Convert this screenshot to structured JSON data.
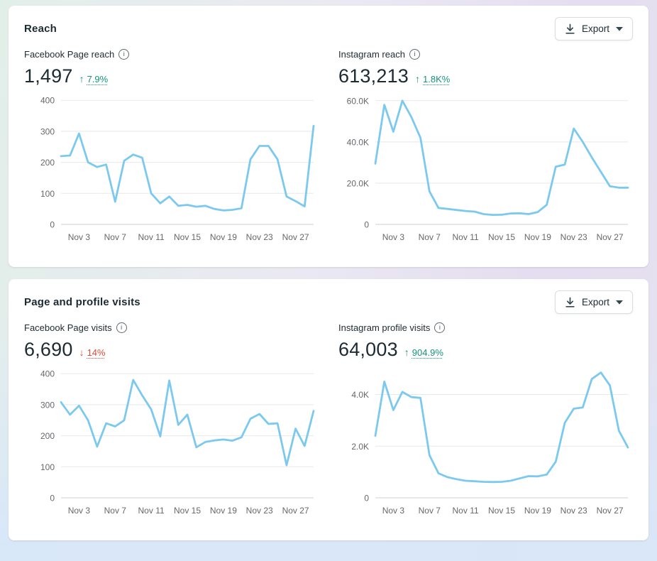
{
  "colors": {
    "positive": "#13947c",
    "negative": "#e0493a",
    "line": "#7cc9f0",
    "grid": "#e7e8ea",
    "axis_zero": "#ccd0d5",
    "card_bg": "#ffffff",
    "text_primary": "#1c2b33",
    "tick_text": "#65676b"
  },
  "icons": {
    "export": "download-icon",
    "export_caret": "chevron-down-icon",
    "metric_info": "info-icon"
  },
  "cards": [
    {
      "title": "Reach",
      "export_label": "Export",
      "metrics": [
        {
          "label": "Facebook Page reach",
          "value": "1,497",
          "arrow": "↑",
          "delta": "7.9%",
          "direction": "up"
        },
        {
          "label": "Instagram reach",
          "value": "613,213",
          "arrow": "↑",
          "delta": "1.8K%",
          "direction": "up"
        }
      ]
    },
    {
      "title": "Page and profile visits",
      "export_label": "Export",
      "metrics": [
        {
          "label": "Facebook Page visits",
          "value": "6,690",
          "arrow": "↓",
          "delta": "14%",
          "direction": "down"
        },
        {
          "label": "Instagram profile visits",
          "value": "64,003",
          "arrow": "↑",
          "delta": "904.9%",
          "direction": "up"
        }
      ]
    }
  ],
  "chart_data": [
    {
      "type": "line",
      "title": "Facebook Page reach",
      "categories": [
        "Nov 1",
        "Nov 2",
        "Nov 3",
        "Nov 4",
        "Nov 5",
        "Nov 6",
        "Nov 7",
        "Nov 8",
        "Nov 9",
        "Nov 10",
        "Nov 11",
        "Nov 12",
        "Nov 13",
        "Nov 14",
        "Nov 15",
        "Nov 16",
        "Nov 17",
        "Nov 18",
        "Nov 19",
        "Nov 20",
        "Nov 21",
        "Nov 22",
        "Nov 23",
        "Nov 24",
        "Nov 25",
        "Nov 26",
        "Nov 27",
        "Nov 28",
        "Nov 29"
      ],
      "values": [
        220,
        222,
        293,
        200,
        185,
        193,
        73,
        205,
        225,
        215,
        100,
        68,
        90,
        60,
        63,
        57,
        60,
        50,
        45,
        47,
        52,
        210,
        253,
        253,
        210,
        90,
        75,
        58,
        318
      ],
      "ylim": [
        0,
        412
      ],
      "yticks": [
        0,
        100,
        200,
        300,
        400
      ],
      "ytick_labels": [
        "0",
        "100",
        "200",
        "300",
        "400"
      ],
      "xtick_indices": [
        2,
        6,
        10,
        14,
        18,
        22,
        26
      ],
      "xtick_labels": [
        "Nov 3",
        "Nov 7",
        "Nov 11",
        "Nov 15",
        "Nov 19",
        "Nov 23",
        "Nov 27"
      ],
      "line_color": "#7cc9f0",
      "grid": true,
      "legend": "none"
    },
    {
      "type": "line",
      "title": "Instagram reach",
      "categories": [
        "Nov 1",
        "Nov 2",
        "Nov 3",
        "Nov 4",
        "Nov 5",
        "Nov 6",
        "Nov 7",
        "Nov 8",
        "Nov 9",
        "Nov 10",
        "Nov 11",
        "Nov 12",
        "Nov 13",
        "Nov 14",
        "Nov 15",
        "Nov 16",
        "Nov 17",
        "Nov 18",
        "Nov 19",
        "Nov 20",
        "Nov 21",
        "Nov 22",
        "Nov 23",
        "Nov 24",
        "Nov 25",
        "Nov 26",
        "Nov 27",
        "Nov 28",
        "Nov 29"
      ],
      "values": [
        29500,
        58000,
        45000,
        60000,
        52000,
        42000,
        16000,
        8000,
        7500,
        7000,
        6500,
        6200,
        5000,
        4600,
        4700,
        5300,
        5400,
        5000,
        6000,
        9500,
        28000,
        29000,
        46500,
        40000,
        32500,
        25500,
        18500,
        17800,
        17800
      ],
      "ylim": [
        0,
        62000
      ],
      "yticks": [
        0,
        20000,
        40000,
        60000
      ],
      "ytick_labels": [
        "0",
        "20.0K",
        "40.0K",
        "60.0K"
      ],
      "xtick_indices": [
        2,
        6,
        10,
        14,
        18,
        22,
        26
      ],
      "xtick_labels": [
        "Nov 3",
        "Nov 7",
        "Nov 11",
        "Nov 15",
        "Nov 19",
        "Nov 23",
        "Nov 27"
      ],
      "line_color": "#7cc9f0",
      "grid": true,
      "legend": "none"
    },
    {
      "type": "line",
      "title": "Facebook Page visits",
      "categories": [
        "Nov 1",
        "Nov 2",
        "Nov 3",
        "Nov 4",
        "Nov 5",
        "Nov 6",
        "Nov 7",
        "Nov 8",
        "Nov 9",
        "Nov 10",
        "Nov 11",
        "Nov 12",
        "Nov 13",
        "Nov 14",
        "Nov 15",
        "Nov 16",
        "Nov 17",
        "Nov 18",
        "Nov 19",
        "Nov 20",
        "Nov 21",
        "Nov 22",
        "Nov 23",
        "Nov 24",
        "Nov 25",
        "Nov 26",
        "Nov 27",
        "Nov 28",
        "Nov 29"
      ],
      "values": [
        308,
        268,
        297,
        250,
        165,
        240,
        230,
        250,
        380,
        330,
        285,
        198,
        378,
        235,
        268,
        163,
        180,
        185,
        188,
        184,
        195,
        255,
        270,
        238,
        240,
        105,
        223,
        167,
        280
      ],
      "ylim": [
        0,
        412
      ],
      "yticks": [
        0,
        100,
        200,
        300,
        400
      ],
      "ytick_labels": [
        "0",
        "100",
        "200",
        "300",
        "400"
      ],
      "xtick_indices": [
        2,
        6,
        10,
        14,
        18,
        22,
        26
      ],
      "xtick_labels": [
        "Nov 3",
        "Nov 7",
        "Nov 11",
        "Nov 15",
        "Nov 19",
        "Nov 23",
        "Nov 27"
      ],
      "line_color": "#7cc9f0",
      "grid": true,
      "legend": "none"
    },
    {
      "type": "line",
      "title": "Instagram profile visits",
      "categories": [
        "Nov 1",
        "Nov 2",
        "Nov 3",
        "Nov 4",
        "Nov 5",
        "Nov 6",
        "Nov 7",
        "Nov 8",
        "Nov 9",
        "Nov 10",
        "Nov 11",
        "Nov 12",
        "Nov 13",
        "Nov 14",
        "Nov 15",
        "Nov 16",
        "Nov 17",
        "Nov 18",
        "Nov 19",
        "Nov 20",
        "Nov 21",
        "Nov 22",
        "Nov 23",
        "Nov 24",
        "Nov 25",
        "Nov 26",
        "Nov 27",
        "Nov 28",
        "Nov 29"
      ],
      "values": [
        2400,
        4500,
        3400,
        4100,
        3900,
        3870,
        1650,
        950,
        800,
        720,
        660,
        640,
        620,
        610,
        620,
        660,
        750,
        840,
        830,
        900,
        1400,
        2900,
        3450,
        3500,
        4600,
        4850,
        4350,
        2600,
        1950
      ],
      "ylim": [
        0,
        4950
      ],
      "yticks": [
        0,
        2000,
        4000
      ],
      "ytick_labels": [
        "0",
        "2.0K",
        "4.0K"
      ],
      "xtick_indices": [
        2,
        6,
        10,
        14,
        18,
        22,
        26
      ],
      "xtick_labels": [
        "Nov 3",
        "Nov 7",
        "Nov 11",
        "Nov 15",
        "Nov 19",
        "Nov 23",
        "Nov 27"
      ],
      "line_color": "#7cc9f0",
      "grid": true,
      "legend": "none"
    }
  ]
}
